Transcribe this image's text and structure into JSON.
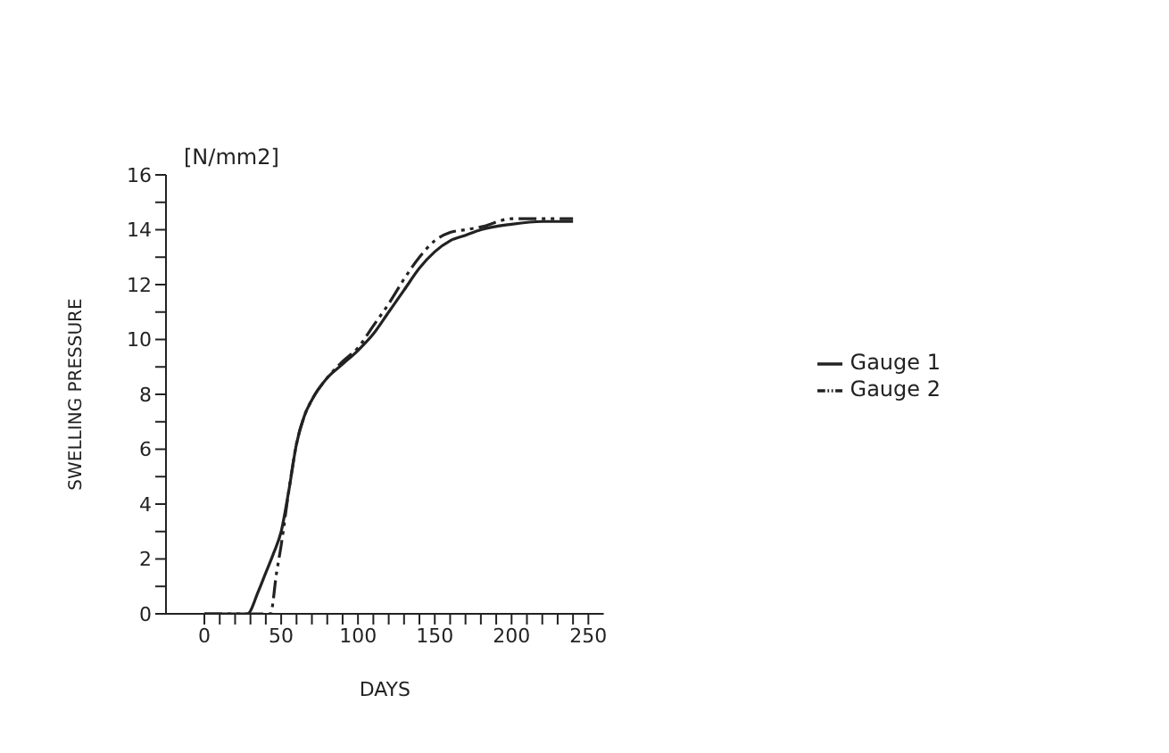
{
  "chart_data": {
    "type": "line",
    "xlabel": "DAYS",
    "ylabel": "SWELLING PRESSURE",
    "annotations": [
      "[N/mm2]"
    ],
    "xlim": [
      -25,
      260
    ],
    "xticks": [
      0,
      {
        "value": 10,
        "label": null
      },
      {
        "value": 20,
        "label": null
      },
      {
        "value": 30,
        "label": null
      },
      {
        "value": 40,
        "label": null
      },
      50,
      {
        "value": 60,
        "label": null
      },
      {
        "value": 70,
        "label": null
      },
      {
        "value": 80,
        "label": null
      },
      {
        "value": 90,
        "label": null
      },
      100,
      {
        "value": 110,
        "label": null
      },
      {
        "value": 120,
        "label": null
      },
      {
        "value": 130,
        "label": null
      },
      {
        "value": 140,
        "label": null
      },
      150,
      {
        "value": 160,
        "label": null
      },
      {
        "value": 170,
        "label": null
      },
      {
        "value": 180,
        "label": null
      },
      {
        "value": 190,
        "label": null
      },
      200,
      {
        "value": 210,
        "label": null
      },
      {
        "value": 220,
        "label": null
      },
      {
        "value": 230,
        "label": null
      },
      {
        "value": 240,
        "label": null
      },
      250
    ],
    "ylim": [
      0,
      16
    ],
    "yticks": [
      0,
      {
        "value": 1,
        "label": null
      },
      2,
      {
        "value": 3,
        "label": null
      },
      4,
      {
        "value": 5,
        "label": null
      },
      6,
      {
        "value": 7,
        "label": null
      },
      8,
      {
        "value": 9,
        "label": null
      },
      10,
      {
        "value": 11,
        "label": null
      },
      12,
      {
        "value": 13,
        "label": null
      },
      14,
      {
        "value": 15,
        "label": null
      },
      16
    ],
    "grid": false,
    "legend": "right",
    "marker": "none",
    "series": [
      {
        "name": "Gauge 1",
        "color": "#222222",
        "line_style": "solid",
        "x": [
          0,
          28,
          35,
          40,
          45,
          50,
          55,
          60,
          65,
          70,
          80,
          90,
          100,
          110,
          120,
          130,
          140,
          150,
          160,
          170,
          180,
          200,
          220,
          240
        ],
        "values": [
          0,
          0,
          0.8,
          1.5,
          2.2,
          3,
          4.5,
          6.2,
          7.2,
          7.8,
          8.6,
          9.1,
          9.6,
          10.2,
          11,
          11.8,
          12.6,
          13.2,
          13.6,
          13.8,
          14,
          14.2,
          14.3,
          14.3
        ]
      },
      {
        "name": "Gauge 2",
        "color": "#222222",
        "line_style": "dashed",
        "x": [
          0,
          43,
          47,
          50,
          55,
          60,
          65,
          70,
          80,
          90,
          100,
          110,
          120,
          130,
          140,
          150,
          160,
          170,
          180,
          200,
          220,
          240
        ],
        "values": [
          0,
          0,
          1.5,
          2.5,
          4.5,
          6.2,
          7.2,
          7.8,
          8.6,
          9.2,
          9.7,
          10.5,
          11.3,
          12.2,
          13,
          13.6,
          13.9,
          14,
          14.1,
          14.4,
          14.4,
          14.4
        ]
      }
    ]
  }
}
